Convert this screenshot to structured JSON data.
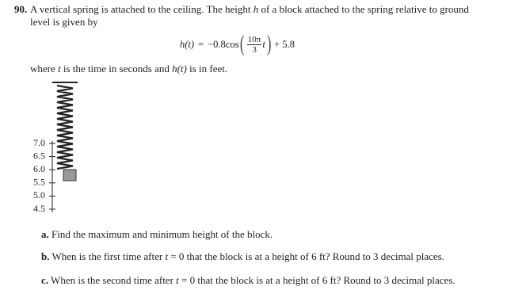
{
  "problem": {
    "number": "90.",
    "intro": [
      "A vertical spring is attached to the ceiling. The height ",
      "h",
      " of a block attached to the spring relative to ground level is given by"
    ],
    "equation": {
      "lhs": "h(t)",
      "equals": "=",
      "coef": "−0.8cos",
      "numerator": "10π",
      "denominator": "3",
      "variable": "t",
      "constant": "+ 5.8"
    },
    "where": [
      "where ",
      "t",
      " is the time in seconds and ",
      "h(t)",
      " is in feet."
    ]
  },
  "figure": {
    "ticks": [
      "7.0",
      "6.5",
      "6.0",
      "5.5",
      "5.0",
      "4.5"
    ]
  },
  "parts": [
    {
      "label": "a.",
      "text": [
        "Find the maximum and minimum height of the block."
      ]
    },
    {
      "label": "b.",
      "text": [
        "When is the first time after ",
        "t",
        " = 0 that the block is at a height of 6 ft? Round to 3 decimal places."
      ]
    },
    {
      "label": "c.",
      "text": [
        "When is the second time after ",
        "t",
        " = 0 that the block is at a height of 6 ft? Round to 3 decimal places."
      ]
    }
  ]
}
